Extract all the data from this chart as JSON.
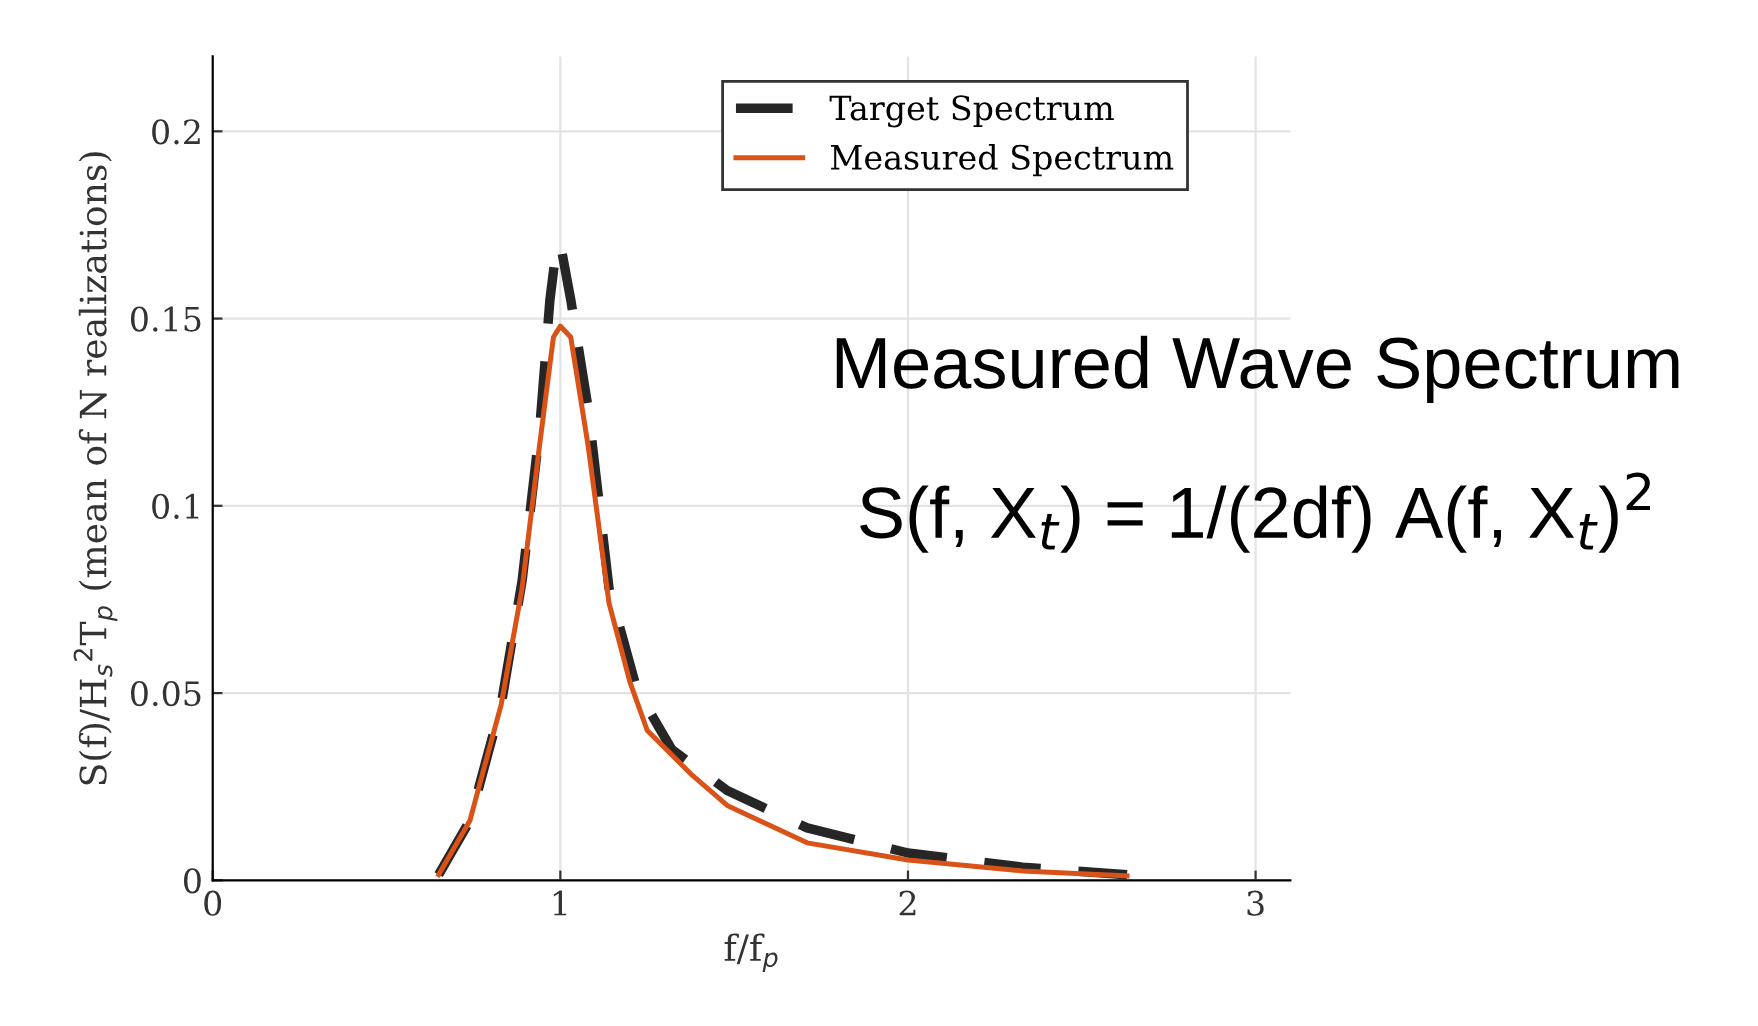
{
  "chart_data": {
    "type": "line",
    "xlabel": "f/f$_{p}$",
    "ylabel": "S(f)/H$_{s}$$^{2}$T$_{p}$ (mean of N realizations)",
    "xlim": [
      0,
      3.1
    ],
    "xticks": [
      0,
      1,
      2,
      3
    ],
    "ylim": [
      0,
      0.22
    ],
    "yticks": [
      0,
      0.05,
      0.1,
      0.15,
      0.2
    ],
    "grid": true,
    "legend": "top right",
    "series": [
      {
        "name": "Target Spectrum",
        "color": "#262626",
        "line_style": "dashed",
        "x": [
          0.65,
          0.74,
          0.83,
          0.89,
          0.94,
          0.97,
          0.99,
          1.0,
          1.03,
          1.08,
          1.14,
          1.22,
          1.32,
          1.48,
          1.71,
          2.0,
          2.33,
          2.63
        ],
        "values": [
          0.0015,
          0.016,
          0.047,
          0.08,
          0.12,
          0.155,
          0.17,
          0.17,
          0.155,
          0.126,
          0.078,
          0.051,
          0.035,
          0.024,
          0.014,
          0.0073,
          0.0035,
          0.0015
        ]
      },
      {
        "name": "Measured Spectrum",
        "color": "#d95319",
        "line_style": "solid",
        "x": [
          0.65,
          0.74,
          0.83,
          0.89,
          0.94,
          0.98,
          1.0,
          1.03,
          1.08,
          1.14,
          1.2,
          1.25,
          1.38,
          1.48,
          1.71,
          2.0,
          2.33,
          2.63
        ],
        "values": [
          0.0015,
          0.016,
          0.047,
          0.078,
          0.116,
          0.145,
          0.148,
          0.145,
          0.116,
          0.074,
          0.053,
          0.04,
          0.028,
          0.02,
          0.01,
          0.0054,
          0.0025,
          0.0012
        ]
      }
    ],
    "annotations": [
      "Measured Wave Spectrum",
      "S(f, X$_{t}$) = 1/(2df) A(f, X$_{t}$)$^{2}$"
    ]
  }
}
